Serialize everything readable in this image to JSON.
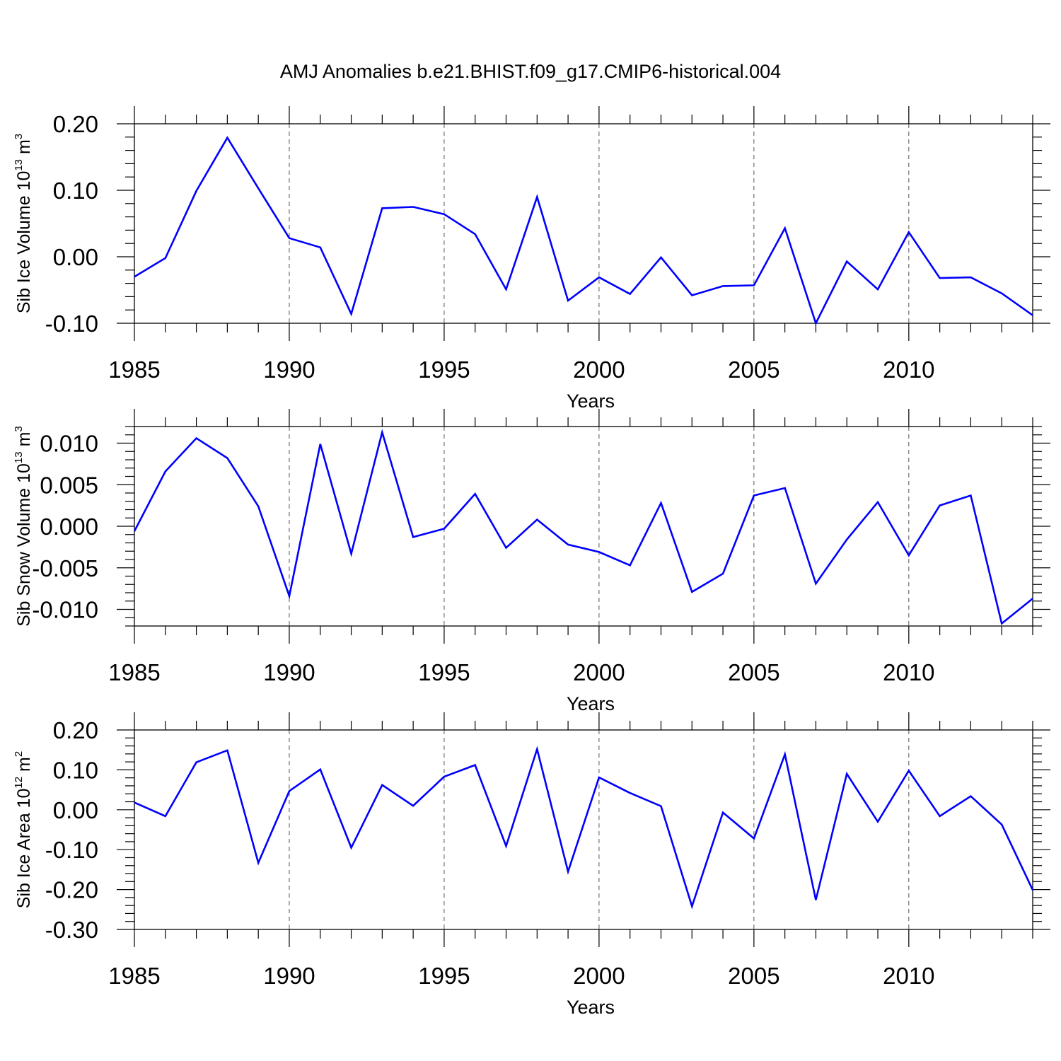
{
  "figure_title": "AMJ Anomalies b.e21.BHIST.f09_g17.CMIP6-historical.004",
  "line_color": "#0000ff",
  "chart_data": [
    {
      "type": "line",
      "xlabel": "Years",
      "ylabel": {
        "text": "Sib Ice Volume 10",
        "exponent": "13",
        "unit": " m",
        "unit_exponent": "3"
      },
      "xlim": [
        1985,
        2014
      ],
      "ylim": [
        -0.1,
        0.2
      ],
      "xticks": [
        1985,
        1990,
        1995,
        2000,
        2005,
        2010
      ],
      "xtick_labels": [
        "1985",
        "1990",
        "1995",
        "2000",
        "2005",
        "2010"
      ],
      "yticks": [
        -0.1,
        0.0,
        0.1,
        0.2
      ],
      "ytick_labels": [
        "-0.10",
        "0.00",
        "0.10",
        "0.20"
      ],
      "minor_y_step": 0.02,
      "grid": "vertical dashed at major x ticks",
      "x": [
        1985,
        1986,
        1987,
        1988,
        1989,
        1990,
        1991,
        1992,
        1993,
        1994,
        1995,
        1996,
        1997,
        1998,
        1999,
        2000,
        2001,
        2002,
        2003,
        2004,
        2005,
        2006,
        2007,
        2008,
        2009,
        2010,
        2011,
        2012,
        2013,
        2014
      ],
      "y": [
        -0.03,
        -0.002,
        0.099,
        0.179,
        0.103,
        0.028,
        0.014,
        -0.086,
        0.073,
        0.075,
        0.064,
        0.034,
        -0.049,
        0.09,
        -0.066,
        -0.031,
        -0.056,
        -0.001,
        -0.058,
        -0.044,
        -0.043,
        0.043,
        -0.1,
        -0.007,
        -0.049,
        0.037,
        -0.032,
        -0.031,
        -0.055,
        -0.088
      ]
    },
    {
      "type": "line",
      "xlabel": "Years",
      "ylabel": {
        "text": "Sib Snow Volume 10",
        "exponent": "13",
        "unit": " m",
        "unit_exponent": "3"
      },
      "xlim": [
        1985,
        2014
      ],
      "ylim": [
        -0.012,
        0.012
      ],
      "xticks": [
        1985,
        1990,
        1995,
        2000,
        2005,
        2010
      ],
      "xtick_labels": [
        "1985",
        "1990",
        "1995",
        "2000",
        "2005",
        "2010"
      ],
      "yticks": [
        -0.01,
        -0.005,
        0.0,
        0.005,
        0.01
      ],
      "ytick_labels": [
        "-0.010",
        "-0.005",
        "0.000",
        "0.005",
        "0.010"
      ],
      "minor_y_step": 0.001,
      "grid": "vertical dashed at major x ticks",
      "x": [
        1985,
        1986,
        1987,
        1988,
        1989,
        1990,
        1991,
        1992,
        1993,
        1994,
        1995,
        1996,
        1997,
        1998,
        1999,
        2000,
        2001,
        2002,
        2003,
        2004,
        2005,
        2006,
        2007,
        2008,
        2009,
        2010,
        2011,
        2012,
        2013,
        2014
      ],
      "y": [
        -0.0006,
        0.0066,
        0.0106,
        0.0082,
        0.0024,
        -0.0084,
        0.0099,
        -0.0033,
        0.0113,
        -0.0013,
        -0.0003,
        0.0039,
        -0.0026,
        0.0008,
        -0.0022,
        -0.0031,
        -0.0047,
        0.0028,
        -0.0079,
        -0.0057,
        0.0037,
        0.0046,
        -0.0069,
        -0.0016,
        0.0029,
        -0.0035,
        0.0025,
        0.0037,
        -0.0117,
        -0.0087
      ]
    },
    {
      "type": "line",
      "xlabel": "Years",
      "ylabel": {
        "text": "Sib Ice Area 10",
        "exponent": "12",
        "unit": " m",
        "unit_exponent": "2"
      },
      "xlim": [
        1985,
        2014
      ],
      "ylim": [
        -0.3,
        0.2
      ],
      "xticks": [
        1985,
        1990,
        1995,
        2000,
        2005,
        2010
      ],
      "xtick_labels": [
        "1985",
        "1990",
        "1995",
        "2000",
        "2005",
        "2010"
      ],
      "yticks": [
        -0.3,
        -0.2,
        -0.1,
        0.0,
        0.1,
        0.2
      ],
      "ytick_labels": [
        "-0.30",
        "-0.20",
        "-0.10",
        "0.00",
        "0.10",
        "0.20"
      ],
      "minor_y_step": 0.02,
      "grid": "vertical dashed at major x ticks",
      "x": [
        1985,
        1986,
        1987,
        1988,
        1989,
        1990,
        1991,
        1992,
        1993,
        1994,
        1995,
        1996,
        1997,
        1998,
        1999,
        2000,
        2001,
        2002,
        2003,
        2004,
        2005,
        2006,
        2007,
        2008,
        2009,
        2010,
        2011,
        2012,
        2013,
        2014
      ],
      "y": [
        0.018,
        -0.016,
        0.119,
        0.149,
        -0.133,
        0.047,
        0.101,
        -0.095,
        0.062,
        0.01,
        0.083,
        0.112,
        -0.091,
        0.152,
        -0.155,
        0.081,
        0.042,
        0.009,
        -0.242,
        -0.007,
        -0.072,
        0.139,
        -0.226,
        0.09,
        -0.03,
        0.098,
        -0.016,
        0.034,
        -0.037,
        -0.201
      ]
    }
  ]
}
